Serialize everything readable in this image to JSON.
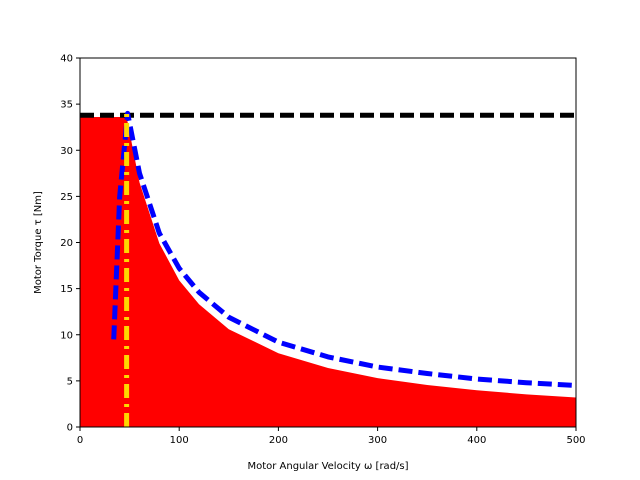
{
  "chart_data": {
    "type": "area",
    "title": "",
    "xlabel": "Motor Angular Velocity ω [rad/s]",
    "ylabel": "Motor Torque τ [Nm]",
    "xlim": [
      0,
      500
    ],
    "ylim": [
      0,
      40
    ],
    "xticks": [
      0,
      100,
      200,
      300,
      400,
      500
    ],
    "yticks": [
      0,
      5,
      10,
      15,
      20,
      25,
      30,
      35,
      40
    ],
    "grid": false,
    "series": [
      {
        "kind": "filled-area",
        "color": "#ff0000",
        "x": [
          0,
          47,
          60,
          80,
          100,
          120,
          150,
          200,
          250,
          300,
          350,
          400,
          450,
          500
        ],
        "y": [
          33.6,
          33.6,
          26.5,
          19.9,
          15.9,
          13.3,
          10.6,
          8.0,
          6.4,
          5.3,
          4.55,
          3.98,
          3.54,
          3.2
        ]
      },
      {
        "kind": "dashed-line",
        "color": "#000000",
        "x": [
          0,
          500
        ],
        "y": [
          33.8,
          33.8
        ]
      },
      {
        "kind": "dashed-line",
        "color": "#0000ff",
        "x": [
          34,
          40,
          48,
          60,
          80,
          100,
          120,
          150,
          200,
          250,
          300,
          350,
          400,
          450,
          500
        ],
        "y": [
          9.5,
          25,
          34,
          27.5,
          21.0,
          17.2,
          14.6,
          11.9,
          9.2,
          7.6,
          6.5,
          5.8,
          5.2,
          4.8,
          4.5
        ]
      },
      {
        "kind": "dashdot-line",
        "color": "#ffd700",
        "x": [
          47,
          47
        ],
        "y": [
          0,
          34
        ]
      }
    ]
  }
}
